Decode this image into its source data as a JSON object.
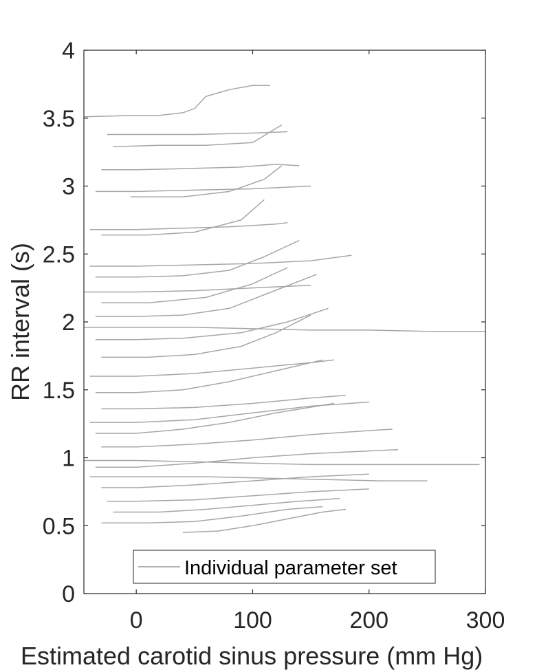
{
  "chart_data": {
    "type": "line",
    "title": "",
    "xlabel": "Estimated carotid sinus pressure (mm Hg)",
    "ylabel": "RR interval (s)",
    "xlim": [
      -45,
      300
    ],
    "ylim": [
      0,
      4
    ],
    "xticks": [
      0,
      100,
      200,
      300
    ],
    "yticks": [
      0,
      0.5,
      1,
      1.5,
      2,
      2.5,
      3,
      3.5,
      4
    ],
    "xtick_labels": [
      "0",
      "100",
      "200",
      "300"
    ],
    "ytick_labels": [
      "0",
      "0.5",
      "1",
      "1.5",
      "2",
      "2.5",
      "3",
      "3.5",
      "4"
    ],
    "grid": false,
    "legend": {
      "position": "bottom-center",
      "entries": [
        "Individual parameter set"
      ]
    },
    "series_color": "#a6a6a6",
    "series": [
      {
        "name": "Individual parameter set",
        "x": [
          -45,
          0,
          20,
          40,
          50,
          60,
          80,
          100,
          115
        ],
        "y": [
          3.51,
          3.52,
          3.52,
          3.54,
          3.57,
          3.66,
          3.71,
          3.74,
          3.74
        ]
      },
      {
        "name": "Individual parameter set",
        "x": [
          -25,
          0,
          50,
          100,
          130
        ],
        "y": [
          3.38,
          3.38,
          3.38,
          3.39,
          3.4
        ]
      },
      {
        "name": "Individual parameter set",
        "x": [
          -20,
          20,
          60,
          100,
          125
        ],
        "y": [
          3.29,
          3.3,
          3.3,
          3.32,
          3.45
        ]
      },
      {
        "name": "Individual parameter set",
        "x": [
          -30,
          0,
          50,
          90,
          120,
          140
        ],
        "y": [
          3.12,
          3.12,
          3.13,
          3.14,
          3.16,
          3.15
        ]
      },
      {
        "name": "Individual parameter set",
        "x": [
          -35,
          0,
          50,
          100,
          150
        ],
        "y": [
          2.96,
          2.96,
          2.97,
          2.98,
          3.0
        ]
      },
      {
        "name": "Individual parameter set",
        "x": [
          -5,
          40,
          80,
          110,
          125
        ],
        "y": [
          2.92,
          2.92,
          2.96,
          3.05,
          3.15
        ]
      },
      {
        "name": "Individual parameter set",
        "x": [
          -40,
          0,
          40,
          80,
          120,
          130
        ],
        "y": [
          2.68,
          2.68,
          2.69,
          2.7,
          2.72,
          2.73
        ]
      },
      {
        "name": "Individual parameter set",
        "x": [
          -30,
          10,
          50,
          90,
          110
        ],
        "y": [
          2.64,
          2.64,
          2.66,
          2.75,
          2.9
        ]
      },
      {
        "name": "Individual parameter set",
        "x": [
          -40,
          0,
          50,
          100,
          150,
          185
        ],
        "y": [
          2.41,
          2.41,
          2.42,
          2.43,
          2.45,
          2.49
        ]
      },
      {
        "name": "Individual parameter set",
        "x": [
          -35,
          0,
          40,
          80,
          110,
          140
        ],
        "y": [
          2.33,
          2.33,
          2.34,
          2.38,
          2.48,
          2.6
        ]
      },
      {
        "name": "Individual parameter set",
        "x": [
          -45,
          0,
          50,
          100,
          150
        ],
        "y": [
          2.22,
          2.22,
          2.23,
          2.25,
          2.27
        ]
      },
      {
        "name": "Individual parameter set",
        "x": [
          -30,
          10,
          60,
          100,
          130
        ],
        "y": [
          2.14,
          2.14,
          2.18,
          2.28,
          2.4
        ]
      },
      {
        "name": "Individual parameter set",
        "x": [
          -35,
          0,
          40,
          80,
          110,
          155
        ],
        "y": [
          2.04,
          2.04,
          2.05,
          2.1,
          2.2,
          2.35
        ]
      },
      {
        "name": "Individual parameter set",
        "x": [
          -45,
          0,
          50,
          100,
          150,
          200,
          250,
          300
        ],
        "y": [
          1.96,
          1.96,
          1.96,
          1.95,
          1.94,
          1.94,
          1.93,
          1.93
        ]
      },
      {
        "name": "Individual parameter set",
        "x": [
          -35,
          0,
          40,
          90,
          130,
          165
        ],
        "y": [
          1.87,
          1.87,
          1.88,
          1.92,
          2.0,
          2.1
        ]
      },
      {
        "name": "Individual parameter set",
        "x": [
          -30,
          10,
          50,
          90,
          120,
          150
        ],
        "y": [
          1.74,
          1.74,
          1.76,
          1.82,
          1.92,
          2.05
        ]
      },
      {
        "name": "Individual parameter set",
        "x": [
          -40,
          0,
          50,
          100,
          150,
          170
        ],
        "y": [
          1.6,
          1.6,
          1.62,
          1.66,
          1.7,
          1.72
        ]
      },
      {
        "name": "Individual parameter set",
        "x": [
          -35,
          0,
          40,
          80,
          120,
          160
        ],
        "y": [
          1.48,
          1.48,
          1.5,
          1.56,
          1.64,
          1.72
        ]
      },
      {
        "name": "Individual parameter set",
        "x": [
          -30,
          0,
          50,
          100,
          150,
          180
        ],
        "y": [
          1.36,
          1.36,
          1.37,
          1.4,
          1.44,
          1.46
        ]
      },
      {
        "name": "Individual parameter set",
        "x": [
          -40,
          0,
          50,
          100,
          150,
          200
        ],
        "y": [
          1.26,
          1.26,
          1.28,
          1.33,
          1.38,
          1.41
        ]
      },
      {
        "name": "Individual parameter set",
        "x": [
          -35,
          0,
          40,
          80,
          120,
          170
        ],
        "y": [
          1.18,
          1.18,
          1.21,
          1.26,
          1.33,
          1.4
        ]
      },
      {
        "name": "Individual parameter set",
        "x": [
          -45,
          0,
          50,
          100,
          150,
          200,
          250,
          295
        ],
        "y": [
          0.98,
          0.98,
          0.97,
          0.96,
          0.95,
          0.95,
          0.95,
          0.95
        ]
      },
      {
        "name": "Individual parameter set",
        "x": [
          -30,
          0,
          50,
          100,
          150,
          200,
          220
        ],
        "y": [
          1.08,
          1.08,
          1.1,
          1.13,
          1.17,
          1.2,
          1.21
        ]
      },
      {
        "name": "Individual parameter set",
        "x": [
          -40,
          0,
          60,
          110,
          160,
          210,
          250
        ],
        "y": [
          0.86,
          0.86,
          0.86,
          0.85,
          0.84,
          0.83,
          0.83
        ]
      },
      {
        "name": "Individual parameter set",
        "x": [
          -35,
          0,
          50,
          100,
          150,
          200,
          225
        ],
        "y": [
          0.93,
          0.93,
          0.96,
          1.0,
          1.03,
          1.05,
          1.06
        ]
      },
      {
        "name": "Individual parameter set",
        "x": [
          -30,
          0,
          50,
          100,
          150,
          200
        ],
        "y": [
          0.78,
          0.78,
          0.8,
          0.83,
          0.86,
          0.88
        ]
      },
      {
        "name": "Individual parameter set",
        "x": [
          -25,
          0,
          50,
          100,
          150,
          200
        ],
        "y": [
          0.68,
          0.68,
          0.69,
          0.72,
          0.75,
          0.77
        ]
      },
      {
        "name": "Individual parameter set",
        "x": [
          -20,
          20,
          60,
          100,
          140,
          175
        ],
        "y": [
          0.6,
          0.6,
          0.62,
          0.65,
          0.68,
          0.7
        ]
      },
      {
        "name": "Individual parameter set",
        "x": [
          -30,
          10,
          50,
          90,
          130,
          160
        ],
        "y": [
          0.52,
          0.52,
          0.53,
          0.57,
          0.62,
          0.64
        ]
      },
      {
        "name": "Individual parameter set",
        "x": [
          40,
          70,
          100,
          130,
          160,
          180
        ],
        "y": [
          0.45,
          0.46,
          0.5,
          0.55,
          0.6,
          0.62
        ]
      }
    ]
  }
}
